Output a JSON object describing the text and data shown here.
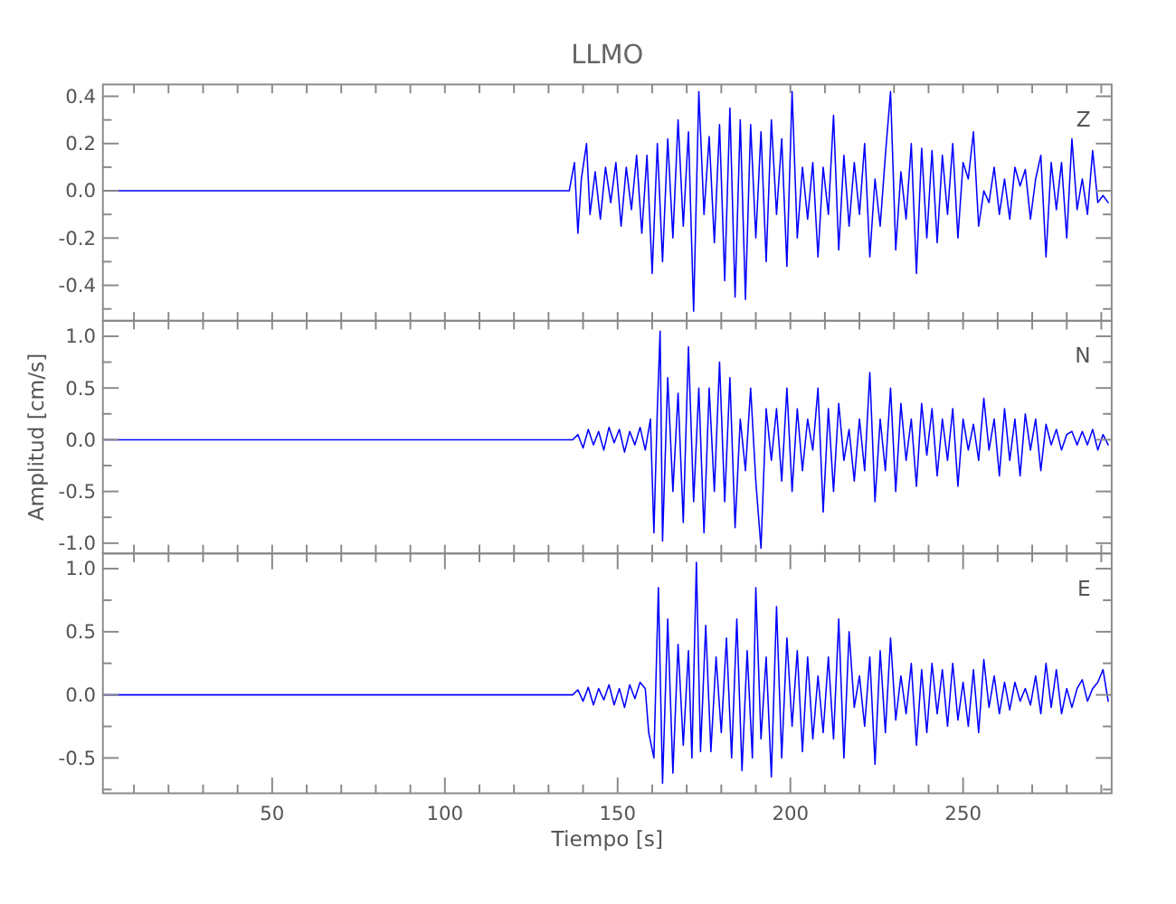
{
  "chart_data": [
    {
      "type": "line",
      "title": "LLMO",
      "annotations": [
        "Z"
      ],
      "tick_labels": "y",
      "xlim": [
        1,
        293
      ],
      "ylim": [
        -0.55,
        0.45
      ],
      "xticks": [
        {
          "value": 10,
          "label": null
        },
        {
          "value": 20,
          "label": null
        },
        {
          "value": 30,
          "label": null
        },
        {
          "value": 40,
          "label": null
        },
        {
          "value": 50,
          "label": null
        },
        {
          "value": 60,
          "label": null
        },
        {
          "value": 70,
          "label": null
        },
        {
          "value": 80,
          "label": null
        },
        {
          "value": 90,
          "label": null
        },
        {
          "value": 100,
          "label": null
        },
        {
          "value": 110,
          "label": null
        },
        {
          "value": 120,
          "label": null
        },
        {
          "value": 130,
          "label": null
        },
        {
          "value": 140,
          "label": null
        },
        {
          "value": 150,
          "label": null
        },
        {
          "value": 160,
          "label": null
        },
        {
          "value": 170,
          "label": null
        },
        {
          "value": 180,
          "label": null
        },
        {
          "value": 190,
          "label": null
        },
        {
          "value": 200,
          "label": null
        },
        {
          "value": 210,
          "label": null
        },
        {
          "value": 220,
          "label": null
        },
        {
          "value": 230,
          "label": null
        },
        {
          "value": 240,
          "label": null
        },
        {
          "value": 250,
          "label": null
        },
        {
          "value": 260,
          "label": null
        },
        {
          "value": 270,
          "label": null
        },
        {
          "value": 280,
          "label": null
        },
        {
          "value": 290,
          "label": null
        }
      ],
      "yticks": [
        {
          "value": -0.5,
          "label": null
        },
        {
          "value": -0.4,
          "label": "-0.4"
        },
        {
          "value": -0.3,
          "label": null
        },
        {
          "value": -0.2,
          "label": "-0.2"
        },
        {
          "value": -0.1,
          "label": null
        },
        {
          "value": 0,
          "label": "0.0"
        },
        {
          "value": 0.1,
          "label": null
        },
        {
          "value": 0.2,
          "label": "0.2"
        },
        {
          "value": 0.3,
          "label": null
        },
        {
          "value": 0.4,
          "label": "0.4"
        }
      ],
      "series": [
        {
          "color": "#0000ff",
          "x": [
            1,
            50,
            100,
            136,
            137.5,
            138.5,
            139.5,
            141,
            142,
            143.5,
            145,
            146.5,
            148,
            149.5,
            151,
            152.5,
            154,
            155.5,
            157,
            158.5,
            160,
            161.5,
            163,
            164.5,
            166,
            167.5,
            169,
            170.5,
            172,
            173.5,
            175,
            176.5,
            178,
            179.5,
            181,
            182.5,
            184,
            185.5,
            187,
            188.5,
            190,
            191.5,
            193,
            194.5,
            196,
            197.5,
            199,
            200.5,
            202,
            203.5,
            205,
            206.5,
            208,
            209.5,
            211,
            212.5,
            214,
            215.5,
            217,
            218.5,
            220,
            221.5,
            223,
            224.5,
            226,
            227.5,
            229,
            230.5,
            232,
            233.5,
            235,
            236.5,
            238,
            239.5,
            241,
            242.5,
            244,
            245.5,
            247,
            248.5,
            250,
            251.5,
            253,
            254.5,
            256,
            257.5,
            259,
            260.5,
            262,
            263.5,
            265,
            266.5,
            268,
            269.5,
            271,
            272.5,
            274,
            275.5,
            277,
            278.5,
            280,
            281.5,
            283,
            284.5,
            286,
            287.5,
            289,
            290.5,
            292
          ],
          "values": [
            0,
            0,
            0,
            0,
            0.12,
            -0.18,
            0.05,
            0.2,
            -0.1,
            0.08,
            -0.12,
            0.1,
            -0.05,
            0.12,
            -0.15,
            0.1,
            -0.08,
            0.15,
            -0.18,
            0.15,
            -0.35,
            0.2,
            -0.3,
            0.22,
            -0.2,
            0.3,
            -0.15,
            0.25,
            -0.51,
            0.42,
            -0.1,
            0.23,
            -0.22,
            0.28,
            -0.38,
            0.35,
            -0.45,
            0.3,
            -0.46,
            0.28,
            -0.2,
            0.25,
            -0.3,
            0.3,
            -0.1,
            0.22,
            -0.32,
            0.42,
            -0.2,
            0.1,
            -0.12,
            0.12,
            -0.28,
            0.1,
            -0.1,
            0.32,
            -0.25,
            0.15,
            -0.15,
            0.12,
            -0.1,
            0.2,
            -0.28,
            0.05,
            -0.15,
            0.15,
            0.42,
            -0.25,
            0.08,
            -0.12,
            0.2,
            -0.35,
            0.18,
            -0.2,
            0.17,
            -0.22,
            0.15,
            -0.1,
            0.2,
            -0.2,
            0.12,
            0.05,
            0.25,
            -0.15,
            0,
            -0.05,
            0.1,
            -0.1,
            0.05,
            -0.12,
            0.1,
            0.02,
            0.09,
            -0.12,
            0.05,
            0.15,
            -0.28,
            0.12,
            -0.08,
            0.12,
            -0.2,
            0.22,
            -0.08,
            0.05,
            -0.1,
            0.17,
            -0.05,
            -0.02,
            -0.05
          ]
        }
      ]
    },
    {
      "type": "line",
      "ylabel": "Amplitud [cm/s]",
      "annotations": [
        "N"
      ],
      "tick_labels": "y",
      "xlim": [
        1,
        293
      ],
      "ylim": [
        -1.1,
        1.15
      ],
      "xticks": [
        {
          "value": 10,
          "label": null
        },
        {
          "value": 20,
          "label": null
        },
        {
          "value": 30,
          "label": null
        },
        {
          "value": 40,
          "label": null
        },
        {
          "value": 50,
          "label": null
        },
        {
          "value": 60,
          "label": null
        },
        {
          "value": 70,
          "label": null
        },
        {
          "value": 80,
          "label": null
        },
        {
          "value": 90,
          "label": null
        },
        {
          "value": 100,
          "label": null
        },
        {
          "value": 110,
          "label": null
        },
        {
          "value": 120,
          "label": null
        },
        {
          "value": 130,
          "label": null
        },
        {
          "value": 140,
          "label": null
        },
        {
          "value": 150,
          "label": null
        },
        {
          "value": 160,
          "label": null
        },
        {
          "value": 170,
          "label": null
        },
        {
          "value": 180,
          "label": null
        },
        {
          "value": 190,
          "label": null
        },
        {
          "value": 200,
          "label": null
        },
        {
          "value": 210,
          "label": null
        },
        {
          "value": 220,
          "label": null
        },
        {
          "value": 230,
          "label": null
        },
        {
          "value": 240,
          "label": null
        },
        {
          "value": 250,
          "label": null
        },
        {
          "value": 260,
          "label": null
        },
        {
          "value": 270,
          "label": null
        },
        {
          "value": 280,
          "label": null
        },
        {
          "value": 290,
          "label": null
        }
      ],
      "yticks": [
        {
          "value": -1,
          "label": "-1.0"
        },
        {
          "value": -0.75,
          "label": null
        },
        {
          "value": -0.5,
          "label": "-0.5"
        },
        {
          "value": -0.25,
          "label": null
        },
        {
          "value": 0,
          "label": "0.0"
        },
        {
          "value": 0.25,
          "label": null
        },
        {
          "value": 0.5,
          "label": "0.5"
        },
        {
          "value": 0.75,
          "label": null
        },
        {
          "value": 1,
          "label": "1.0"
        }
      ],
      "series": [
        {
          "color": "#0000ff",
          "x": [
            1,
            50,
            100,
            137,
            138.5,
            140,
            141.5,
            143,
            144.5,
            146,
            147.5,
            149,
            150.5,
            152,
            153.5,
            155,
            156.5,
            158,
            159.5,
            160.5,
            161.5,
            162.3,
            163,
            164.5,
            166,
            167.5,
            169,
            170.5,
            172,
            173.5,
            175,
            176.5,
            178,
            179.5,
            181,
            182.5,
            184,
            185.5,
            187,
            188.5,
            190,
            191.5,
            193,
            194.5,
            196,
            197.5,
            199,
            200.5,
            202,
            203.5,
            205,
            206.5,
            208,
            209.5,
            211,
            212.5,
            214,
            215.5,
            217,
            218.5,
            220,
            221.5,
            223,
            224.5,
            226,
            227.5,
            229,
            230.5,
            232,
            233.5,
            235,
            236.5,
            238,
            239.5,
            241,
            242.5,
            244,
            245.5,
            247,
            248.5,
            250,
            251.5,
            253,
            254.5,
            256,
            257.5,
            259,
            260.5,
            262,
            263.5,
            265,
            266.5,
            268,
            269.5,
            271,
            272.5,
            274,
            275.5,
            277,
            278.5,
            280,
            281.5,
            283,
            284.5,
            286,
            287.5,
            289,
            290.5,
            292
          ],
          "values": [
            0,
            0,
            0,
            0,
            0.05,
            -0.08,
            0.1,
            -0.05,
            0.08,
            -0.1,
            0.12,
            -0.03,
            0.1,
            -0.12,
            0.08,
            -0.05,
            0.12,
            -0.1,
            0.2,
            -0.9,
            0.3,
            1.05,
            -0.98,
            0.6,
            -0.5,
            0.45,
            -0.8,
            0.9,
            -0.6,
            0.5,
            -0.9,
            0.5,
            -0.5,
            0.75,
            -0.6,
            0.6,
            -0.85,
            0.2,
            -0.3,
            0.5,
            -0.4,
            -1.05,
            0.3,
            -0.2,
            0.3,
            -0.4,
            0.5,
            -0.5,
            0.3,
            -0.3,
            0.2,
            -0.1,
            0.5,
            -0.7,
            0.3,
            -0.5,
            0.35,
            -0.2,
            0.1,
            -0.4,
            0.2,
            -0.3,
            0.65,
            -0.6,
            0.2,
            -0.3,
            0.5,
            -0.5,
            0.35,
            -0.2,
            0.2,
            -0.45,
            0.35,
            -0.15,
            0.3,
            -0.35,
            0.2,
            -0.2,
            0.3,
            -0.45,
            0.2,
            -0.1,
            0.15,
            -0.2,
            0.4,
            -0.1,
            0.2,
            -0.35,
            0.3,
            -0.2,
            0.2,
            -0.35,
            0.25,
            -0.1,
            0.2,
            -0.3,
            0.15,
            -0.05,
            0.1,
            -0.1,
            0.05,
            0.08,
            -0.05,
            0.08,
            -0.05,
            0.1,
            -0.1,
            0.05,
            -0.05
          ]
        }
      ]
    },
    {
      "type": "line",
      "xlabel": "Tiempo [s]",
      "annotations": [
        "E"
      ],
      "xlim": [
        1,
        293
      ],
      "ylim": [
        -0.78,
        1.12
      ],
      "xticks": [
        {
          "value": 10,
          "label": null
        },
        {
          "value": 20,
          "label": null
        },
        {
          "value": 30,
          "label": null
        },
        {
          "value": 40,
          "label": null
        },
        50,
        {
          "value": 60,
          "label": null
        },
        {
          "value": 70,
          "label": null
        },
        {
          "value": 80,
          "label": null
        },
        {
          "value": 90,
          "label": null
        },
        100,
        {
          "value": 110,
          "label": null
        },
        {
          "value": 120,
          "label": null
        },
        {
          "value": 130,
          "label": null
        },
        {
          "value": 140,
          "label": null
        },
        150,
        {
          "value": 160,
          "label": null
        },
        {
          "value": 170,
          "label": null
        },
        {
          "value": 180,
          "label": null
        },
        {
          "value": 190,
          "label": null
        },
        200,
        {
          "value": 210,
          "label": null
        },
        {
          "value": 220,
          "label": null
        },
        {
          "value": 230,
          "label": null
        },
        {
          "value": 240,
          "label": null
        },
        250,
        {
          "value": 260,
          "label": null
        },
        {
          "value": 270,
          "label": null
        },
        {
          "value": 280,
          "label": null
        },
        {
          "value": 290,
          "label": null
        }
      ],
      "yticks": [
        {
          "value": -0.75,
          "label": null
        },
        {
          "value": -0.5,
          "label": "-0.5"
        },
        {
          "value": -0.25,
          "label": null
        },
        {
          "value": 0,
          "label": "0.0"
        },
        {
          "value": 0.25,
          "label": null
        },
        {
          "value": 0.5,
          "label": "0.5"
        },
        {
          "value": 0.75,
          "label": null
        },
        {
          "value": 1,
          "label": "1.0"
        }
      ],
      "series": [
        {
          "color": "#0000ff",
          "x": [
            1,
            50,
            100,
            137,
            138.5,
            140,
            141.5,
            143,
            144.5,
            146,
            147.5,
            149,
            150.5,
            152,
            153.5,
            155,
            156.5,
            158,
            159,
            160.5,
            161.8,
            163,
            164.5,
            166,
            167.5,
            169,
            170.5,
            171.5,
            172.8,
            174,
            175.5,
            177,
            178.5,
            180,
            181.5,
            183,
            184.5,
            186,
            187.5,
            189,
            190,
            191.5,
            193,
            194.5,
            196,
            197.5,
            199,
            200.5,
            202,
            203.5,
            205,
            206.5,
            208,
            209.5,
            211,
            212.5,
            214,
            215.5,
            217,
            218.5,
            220,
            221.5,
            223,
            224.5,
            226,
            227.5,
            229,
            230.5,
            232,
            233.5,
            235,
            236.5,
            238,
            239.5,
            241,
            242.5,
            244,
            245.5,
            247,
            248.5,
            250,
            251.5,
            253,
            254.5,
            256,
            257.5,
            259,
            260.5,
            262,
            263.5,
            265,
            266.5,
            268,
            269.5,
            271,
            272.5,
            274,
            275.5,
            277,
            278.5,
            280,
            281.5,
            283,
            284.5,
            286,
            287.5,
            289,
            290.5,
            292
          ],
          "values": [
            0,
            0,
            0,
            0,
            0.04,
            -0.05,
            0.06,
            -0.08,
            0.05,
            -0.04,
            0.08,
            -0.08,
            0.05,
            -0.1,
            0.08,
            -0.03,
            0.1,
            0.05,
            -0.3,
            -0.5,
            0.85,
            -0.7,
            0.6,
            -0.62,
            0.4,
            -0.4,
            0.35,
            -0.5,
            1.05,
            -0.45,
            0.55,
            -0.45,
            0.3,
            -0.3,
            0.45,
            -0.5,
            0.6,
            -0.6,
            0.35,
            -0.5,
            0.85,
            -0.35,
            0.3,
            -0.65,
            0.7,
            -0.5,
            0.45,
            -0.25,
            0.35,
            -0.45,
            0.3,
            -0.35,
            0.15,
            -0.3,
            0.3,
            -0.35,
            0.6,
            -0.5,
            0.5,
            -0.1,
            0.15,
            -0.25,
            0.3,
            -0.55,
            0.35,
            -0.3,
            0.45,
            -0.2,
            0.15,
            -0.15,
            0.25,
            -0.4,
            0.2,
            -0.3,
            0.25,
            -0.15,
            0.2,
            -0.25,
            0.25,
            -0.2,
            0.1,
            -0.25,
            0.2,
            -0.3,
            0.28,
            -0.1,
            0.15,
            -0.15,
            0.1,
            -0.12,
            0.1,
            -0.05,
            0.05,
            -0.08,
            0.15,
            -0.15,
            0.25,
            -0.1,
            0.2,
            -0.15,
            0.05,
            -0.1,
            0.05,
            0.12,
            -0.05,
            0.05,
            0.1,
            0.2,
            -0.05
          ]
        }
      ]
    }
  ]
}
